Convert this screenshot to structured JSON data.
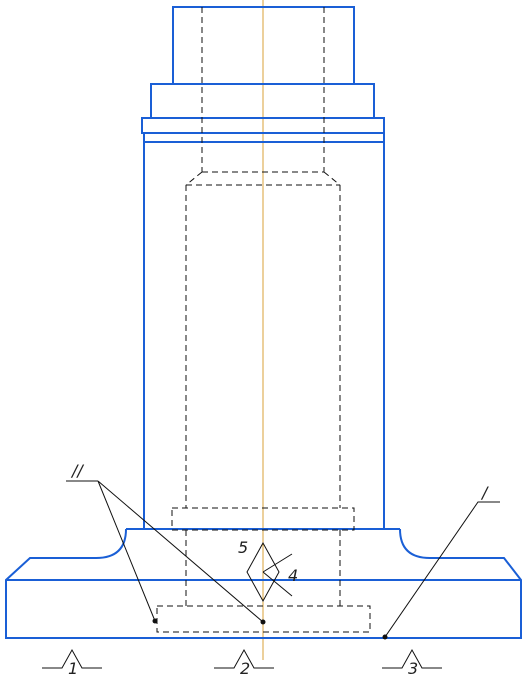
{
  "callouts": {
    "surface_II": "//",
    "surface_I": "/",
    "num_5": "5",
    "num_4": "4"
  },
  "datums": [
    {
      "label": "1"
    },
    {
      "label": "2"
    },
    {
      "label": "3"
    }
  ],
  "colors": {
    "outline": "#1a5fd6",
    "hidden": "#111111",
    "centerline": "#d9a23a"
  }
}
